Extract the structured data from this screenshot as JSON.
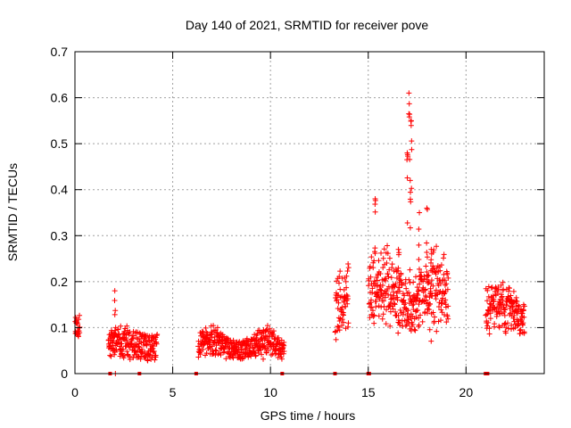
{
  "chart_data": {
    "type": "scatter",
    "title": "Day 140 of 2021, SRMTID for receiver pove",
    "xlabel": "GPS time / hours",
    "ylabel": "SRMTID / TECUs",
    "xlim": [
      0,
      24
    ],
    "ylim": [
      0,
      0.7
    ],
    "x_ticks": [
      0,
      5,
      10,
      15,
      20
    ],
    "x_tick_labels": [
      "0",
      "5",
      "10",
      "15",
      "20"
    ],
    "y_ticks": [
      0,
      0.1,
      0.2,
      0.3,
      0.4,
      0.5,
      0.6,
      0.7
    ],
    "y_tick_labels": [
      "0",
      "0.1",
      "0.2",
      "0.3",
      "0.4",
      "0.5",
      "0.6",
      "0.7"
    ],
    "grid": true,
    "marker": "+",
    "color": "#ff0000",
    "series": [
      {
        "name": "SRMTID",
        "segments": [
          {
            "start": 0.0,
            "end": 0.25,
            "base": 0.08,
            "amp": 0.04,
            "spread": 0.03
          },
          {
            "start": 1.7,
            "end": 4.2,
            "base": 0.055,
            "amp": 0.03,
            "spread": 0.03
          },
          {
            "start": 6.3,
            "end": 10.7,
            "base": 0.05,
            "amp": 0.04,
            "spread": 0.02
          },
          {
            "start": 13.3,
            "end": 14.0,
            "base": 0.12,
            "amp": 0.08,
            "spread": 0.05
          },
          {
            "start": 15.0,
            "end": 19.1,
            "base": 0.15,
            "amp": 0.08,
            "spread": 0.06
          },
          {
            "start": 21.0,
            "end": 23.0,
            "base": 0.12,
            "amp": 0.06,
            "spread": 0.04
          }
        ],
        "peaks": [
          {
            "x": 2.05,
            "y": 0.18
          },
          {
            "x": 15.35,
            "y": 0.38
          },
          {
            "x": 17.1,
            "y": 0.61
          },
          {
            "x": 17.2,
            "y": 0.55
          },
          {
            "x": 17.0,
            "y": 0.48
          },
          {
            "x": 17.15,
            "y": 0.42
          },
          {
            "x": 16.55,
            "y": 0.27
          },
          {
            "x": 17.6,
            "y": 0.35
          },
          {
            "x": 18.0,
            "y": 0.36
          },
          {
            "x": 18.2,
            "y": 0.27
          }
        ],
        "zeros": [
          1.8,
          3.3,
          6.2,
          10.6,
          13.3,
          15.0,
          15.05,
          21.0,
          21.1
        ]
      }
    ]
  }
}
